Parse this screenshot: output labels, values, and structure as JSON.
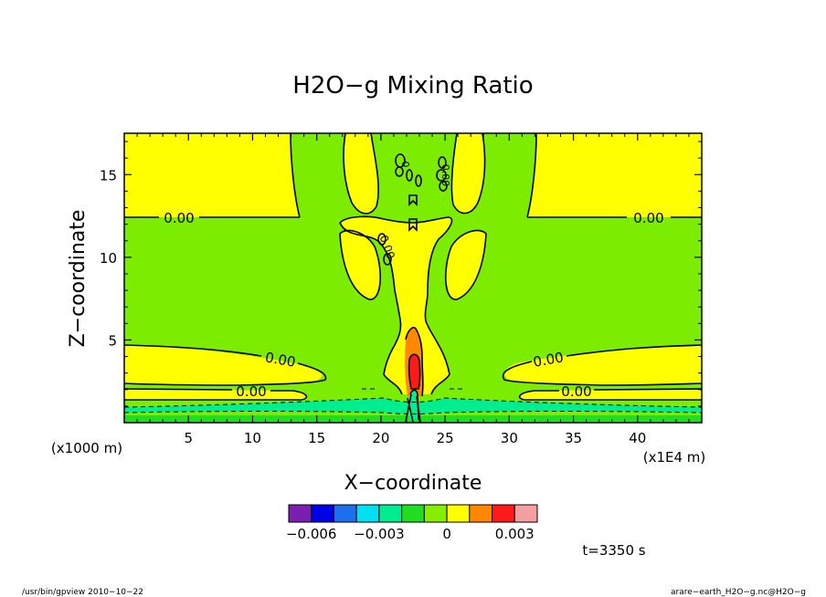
{
  "chart_data": {
    "type": "contour",
    "title": "H2O−g Mixing Ratio",
    "xlabel": "X−coordinate",
    "ylabel": "Z−coordinate",
    "x_scale_label": "(x1000 m)",
    "x_unit_label": "(x1E4 m)",
    "x_ticks": [
      5,
      10,
      15,
      20,
      25,
      30,
      35,
      40
    ],
    "y_ticks": [
      5,
      10,
      15
    ],
    "xlim": [
      0,
      45
    ],
    "ylim": [
      0,
      17.5
    ],
    "contour_labels": [
      "0.00",
      "0.00",
      "0.00",
      "0.00",
      "0.00",
      "0.00",
      "0.00",
      "0.00",
      "0"
    ],
    "colorbar": {
      "levels": [
        -0.006,
        -0.005,
        -0.004,
        -0.003,
        -0.002,
        -0.001,
        0,
        0.001,
        0.002,
        0.003
      ],
      "tick_labels": [
        "−0.006",
        "−0.003",
        "0",
        "0.003"
      ],
      "tick_values": [
        -0.006,
        -0.003,
        0,
        0.003
      ],
      "colors": [
        "#7a1fb0",
        "#0000e6",
        "#1e6ef0",
        "#00e0f0",
        "#00ee90",
        "#22dd22",
        "#88ee00",
        "#ffff00",
        "#ff8800",
        "#ff1a1a",
        "#f5a0a0"
      ]
    },
    "time_label": "t=3350 s"
  },
  "footer": {
    "left": "/usr/bin/gpview  2010−10−22",
    "right": "arare−earth_H2O−g.nc@H2O−g"
  },
  "colors": {
    "yellow": "#ffff00",
    "green": "#7cec00",
    "bright_green": "#22dd22",
    "cyan_green": "#00ee90",
    "orange": "#ff8800",
    "red": "#ff1a1a"
  }
}
